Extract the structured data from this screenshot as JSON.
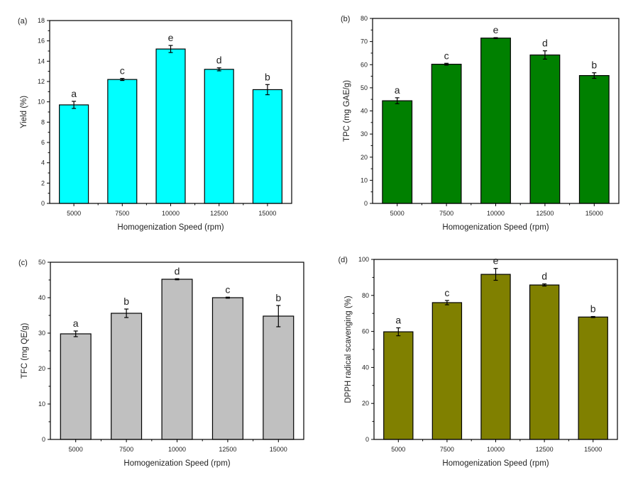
{
  "chart_data": [
    {
      "type": "bar",
      "panel_label": "(a)",
      "title": "",
      "xlabel": "Homogenization Speed (rpm)",
      "ylabel": "Yield (%)",
      "categories": [
        "5000",
        "7500",
        "10000",
        "12500",
        "15000"
      ],
      "values": [
        9.7,
        12.2,
        15.2,
        13.2,
        11.2
      ],
      "errors": [
        0.35,
        0.1,
        0.35,
        0.15,
        0.5
      ],
      "significance_letters": [
        "a",
        "c",
        "e",
        "d",
        "b"
      ],
      "ylim": [
        0,
        18
      ],
      "yticks": [
        0,
        2,
        4,
        6,
        8,
        10,
        12,
        14,
        16,
        18
      ],
      "bar_color": "#00FFFF",
      "grid": false,
      "legend": "none"
    },
    {
      "type": "bar",
      "panel_label": "(b)",
      "title": "",
      "xlabel": "Homogenization Speed (rpm)",
      "ylabel": "TPC (mg GAE/g)",
      "categories": [
        "5000",
        "7500",
        "10000",
        "12500",
        "15000"
      ],
      "values": [
        44.4,
        60.2,
        71.5,
        64.2,
        55.3
      ],
      "errors": [
        1.3,
        0.4,
        0.2,
        1.8,
        1.2
      ],
      "significance_letters": [
        "a",
        "c",
        "e",
        "d",
        "b"
      ],
      "ylim": [
        0,
        80
      ],
      "yticks": [
        0,
        10,
        20,
        30,
        40,
        50,
        60,
        70,
        80
      ],
      "bar_color": "#008000",
      "grid": false,
      "legend": "none"
    },
    {
      "type": "bar",
      "panel_label": "(c)",
      "title": "",
      "xlabel": "Homogenization Speed (rpm)",
      "ylabel": "TFC (mg QE/g)",
      "categories": [
        "5000",
        "7500",
        "10000",
        "12500",
        "15000"
      ],
      "values": [
        29.8,
        35.6,
        45.2,
        40.0,
        34.8
      ],
      "errors": [
        0.8,
        1.2,
        0.15,
        0.15,
        3.0
      ],
      "significance_letters": [
        "a",
        "b",
        "d",
        "c",
        "b"
      ],
      "ylim": [
        0,
        50
      ],
      "yticks": [
        0,
        10,
        20,
        30,
        40,
        50
      ],
      "bar_color": "#C0C0C0",
      "grid": false,
      "legend": "none"
    },
    {
      "type": "bar",
      "panel_label": "(d)",
      "title": "",
      "xlabel": "Homogenization Speed (rpm)",
      "ylabel": "DPPH radical scavenging (%)",
      "categories": [
        "5000",
        "7500",
        "10000",
        "12500",
        "15000"
      ],
      "values": [
        59.8,
        76.0,
        91.7,
        85.8,
        68.0
      ],
      "errors": [
        2.2,
        1.2,
        3.3,
        0.6,
        0.3
      ],
      "significance_letters": [
        "a",
        "c",
        "e",
        "d",
        "b"
      ],
      "ylim": [
        0,
        100
      ],
      "yticks": [
        0,
        20,
        40,
        60,
        80,
        100
      ],
      "bar_color": "#808000",
      "grid": false,
      "legend": "none"
    }
  ]
}
